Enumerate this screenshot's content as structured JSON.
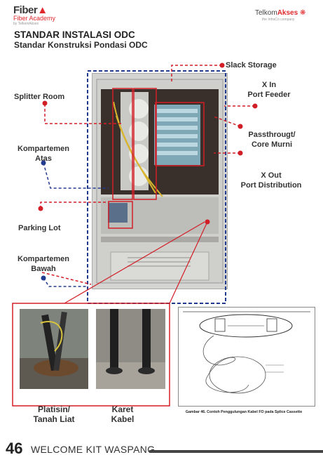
{
  "header": {
    "brand_left": "Fiber",
    "brand_left_sub": "Fiber Academy",
    "brand_left_tag": "by TelkomAkses",
    "brand_right_a": "Telkom",
    "brand_right_b": "Akses",
    "brand_right_sub": "the InfraCo company"
  },
  "title": "STANDAR INSTALASI ODC",
  "subtitle": "Standar Konstruksi Pondasi ODC",
  "labels": {
    "slack_storage": "Slack Storage",
    "x_in": "X In",
    "port_feeder": "Port Feeder",
    "splitter_room": "Splitter Room",
    "passthrough": "Passthrougt/",
    "core_murni": "Core Murni",
    "kompartemen_atas_1": "Kompartemen",
    "kompartemen_atas_2": "Atas",
    "x_out": "X Out",
    "port_distribution": "Port Distribution",
    "parking_lot": "Parking Lot",
    "kompartemen_bawah_1": "Kompartemen",
    "kompartemen_bawah_2": "Bawah",
    "platisin_1": "Platisin/",
    "platisin_2": "Tanah Liat",
    "karet_1": "Karet",
    "karet_2": "Kabel"
  },
  "diagram": {
    "caption": "Gambar 46. Contoh Penggulungan Kabel FO pada Splice Cassette"
  },
  "footer": {
    "page_number": "46",
    "text": "WELCOME KIT WASPANG"
  },
  "colors": {
    "accent_red": "#d21e26",
    "accent_blue": "#233b8f"
  }
}
